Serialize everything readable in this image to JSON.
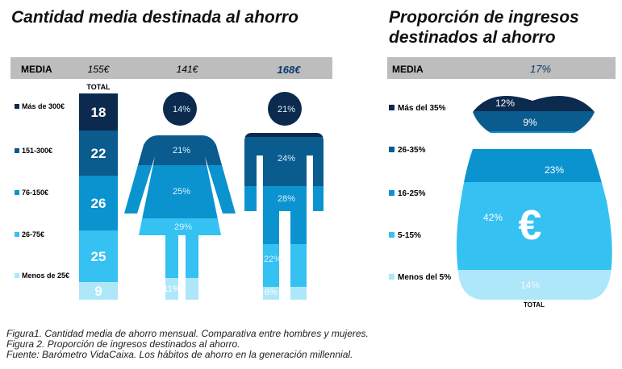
{
  "colors": {
    "c1": "#0b2a4e",
    "c2": "#0a5b8e",
    "c3": "#0b93d0",
    "c4": "#35c1f1",
    "c5": "#aee7f9",
    "header": "#bdbdbd"
  },
  "chart_data": [
    {
      "type": "table",
      "title": "Cantidad media destinada al ahorro",
      "header": {
        "label": "MEDIA",
        "values": [
          "155€",
          "141€",
          "168€"
        ]
      },
      "total_label": "TOTAL",
      "categories": [
        "Más de 300€",
        "151-300€",
        "76-150€",
        "26-75€",
        "Menos de 25€"
      ],
      "series": [
        {
          "name": "Total",
          "values": [
            "18",
            "22",
            "26",
            "25",
            "9"
          ]
        },
        {
          "name": "Mujeres",
          "values": [
            "14%",
            "21%",
            "25%",
            "29%",
            "11%"
          ]
        },
        {
          "name": "Hombres",
          "values": [
            "21%",
            "24%",
            "28%",
            "22%",
            "6%"
          ]
        }
      ]
    },
    {
      "type": "table",
      "title": "Proporción de ingresos destinados al ahorro",
      "header": {
        "label": "MEDIA",
        "value": "17%"
      },
      "total_label": "TOTAL",
      "categories": [
        "Más del 35%",
        "26-35%",
        "16-25%",
        "5-15%",
        "Menos del 5%"
      ],
      "values": [
        "12%",
        "9%",
        "23%",
        "42%",
        "14%"
      ],
      "symbol": "€"
    }
  ],
  "captions": [
    "Figura1. Cantidad media de ahorro mensual. Comparativa entre hombres y mujeres.",
    "Figura 2. Proporción de ingresos destinados al ahorro.",
    "Fuente: Barómetro VidaCaixa. Los hábitos de ahorro en la generación millennial."
  ]
}
